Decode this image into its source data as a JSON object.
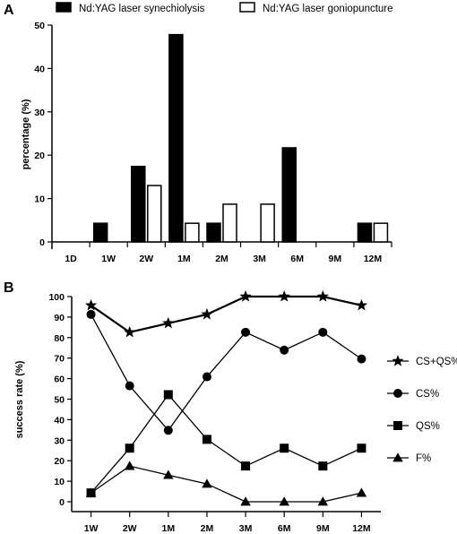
{
  "chart_data": [
    {
      "panel": "A",
      "type": "bar",
      "ylabel": "percentage (%)",
      "ylim": [
        0,
        50
      ],
      "yticks": [
        0,
        10,
        20,
        30,
        40,
        50
      ],
      "categories": [
        "1D",
        "1W",
        "2W",
        "1M",
        "2M",
        "3M",
        "6M",
        "9M",
        "12M"
      ],
      "series": [
        {
          "name": "Nd:YAG laser synechiolysis",
          "fill": "#000000",
          "values": [
            0,
            4.3,
            17.4,
            47.8,
            4.3,
            0,
            21.7,
            0,
            4.3
          ]
        },
        {
          "name": "Nd:YAG laser goniopuncture",
          "fill": "#ffffff",
          "values": [
            0,
            0,
            13.0,
            4.3,
            8.7,
            8.7,
            0,
            0,
            4.3
          ]
        }
      ],
      "legend": "top"
    },
    {
      "panel": "B",
      "type": "line",
      "ylabel": "success rate (%)",
      "ylim": [
        0,
        100
      ],
      "yticks": [
        0,
        10,
        20,
        30,
        40,
        50,
        60,
        70,
        80,
        90,
        100
      ],
      "categories": [
        "1W",
        "2W",
        "1M",
        "2M",
        "3M",
        "6M",
        "9M",
        "12M"
      ],
      "series": [
        {
          "name": "CS+QS%",
          "marker": "star",
          "values": [
            95.7,
            82.6,
            87.0,
            91.3,
            100,
            100,
            100,
            95.7
          ]
        },
        {
          "name": "CS%",
          "marker": "circle",
          "values": [
            91.3,
            56.5,
            34.8,
            60.9,
            82.6,
            73.9,
            82.6,
            69.6
          ]
        },
        {
          "name": "QS%",
          "marker": "square",
          "values": [
            4.3,
            26.1,
            52.2,
            30.4,
            17.4,
            26.1,
            17.4,
            26.1
          ]
        },
        {
          "name": "F%",
          "marker": "triangle",
          "values": [
            4.3,
            17.4,
            13.0,
            8.7,
            0,
            0,
            0,
            4.3
          ]
        }
      ],
      "legend": "right"
    }
  ]
}
